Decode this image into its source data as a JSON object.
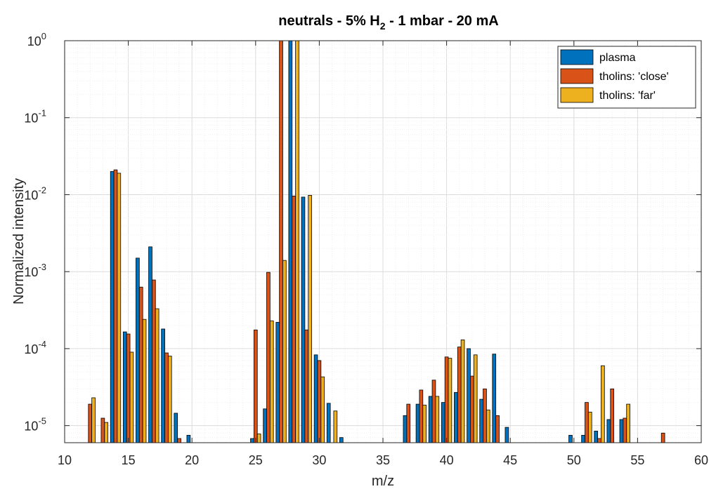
{
  "chart_data": {
    "type": "bar",
    "title_main": "neutrals  -  5% H",
    "title_sub": "2",
    "title_rest": "  -  1 mbar  -  20 mA",
    "xlabel": "m/z",
    "ylabel": "Normalized intensity",
    "xlim": [
      10,
      60
    ],
    "ylim": [
      6e-06,
      1
    ],
    "yscale": "log",
    "grid": true,
    "minor_grid": true,
    "legend_position": "top-right",
    "x_ticks": [
      10,
      15,
      20,
      25,
      30,
      35,
      40,
      45,
      50,
      55,
      60
    ],
    "y_ticks": [
      {
        "base": "10",
        "exp": "0"
      },
      {
        "base": "10",
        "exp": "-1"
      },
      {
        "base": "10",
        "exp": "-2"
      },
      {
        "base": "10",
        "exp": "-3"
      },
      {
        "base": "10",
        "exp": "-4"
      },
      {
        "base": "10",
        "exp": "-5"
      }
    ],
    "series": [
      {
        "name": "plasma",
        "color": "#0072BD",
        "points": [
          [
            14,
            0.02
          ],
          [
            15,
            0.000165
          ],
          [
            16,
            0.0015
          ],
          [
            17,
            0.0021
          ],
          [
            18,
            0.00018
          ],
          [
            19,
            1.45e-05
          ],
          [
            20,
            7.5e-06
          ],
          [
            25,
            6.8e-06
          ],
          [
            26,
            1.65e-05
          ],
          [
            27,
            0.00022
          ],
          [
            28,
            1.0
          ],
          [
            29,
            0.0093
          ],
          [
            30,
            8.3e-05
          ],
          [
            31,
            1.95e-05
          ],
          [
            32,
            7e-06
          ],
          [
            37,
            1.35e-05
          ],
          [
            38,
            1.9e-05
          ],
          [
            39,
            2.4e-05
          ],
          [
            40,
            2e-05
          ],
          [
            41,
            2.7e-05
          ],
          [
            42,
            0.0001
          ],
          [
            43,
            2.2e-05
          ],
          [
            44,
            8.5e-05
          ],
          [
            45,
            9.5e-06
          ],
          [
            50,
            7.5e-06
          ],
          [
            51,
            7.5e-06
          ],
          [
            52,
            8.5e-06
          ],
          [
            53,
            1.2e-05
          ],
          [
            54,
            1.2e-05
          ]
        ]
      },
      {
        "name": "tholins: 'close'",
        "color": "#D95319",
        "points": [
          [
            12,
            1.9e-05
          ],
          [
            13,
            1.25e-05
          ],
          [
            14,
            0.021
          ],
          [
            15,
            0.000155
          ],
          [
            16,
            0.00063
          ],
          [
            17,
            0.00078
          ],
          [
            18,
            8.8e-05
          ],
          [
            19,
            6.8e-06
          ],
          [
            25,
            0.000175
          ],
          [
            26,
            0.00098
          ],
          [
            27,
            1.0
          ],
          [
            28,
            0.0096
          ],
          [
            29,
            0.000175
          ],
          [
            30,
            7e-05
          ],
          [
            37,
            1.9e-05
          ],
          [
            38,
            2.9e-05
          ],
          [
            39,
            3.9e-05
          ],
          [
            40,
            7.8e-05
          ],
          [
            41,
            0.000105
          ],
          [
            42,
            4.4e-05
          ],
          [
            43,
            3e-05
          ],
          [
            44,
            1.35e-05
          ],
          [
            51,
            2e-05
          ],
          [
            52,
            6.8e-06
          ],
          [
            53,
            3e-05
          ],
          [
            54,
            1.25e-05
          ],
          [
            57,
            8e-06
          ]
        ]
      },
      {
        "name": "tholins: 'far'",
        "color": "#EDB120",
        "points": [
          [
            12,
            2.3e-05
          ],
          [
            13,
            1.1e-05
          ],
          [
            14,
            0.019
          ],
          [
            15,
            9e-05
          ],
          [
            16,
            0.00024
          ],
          [
            17,
            0.00033
          ],
          [
            18,
            8e-05
          ],
          [
            25,
            7.8e-06
          ],
          [
            26,
            0.00023
          ],
          [
            27,
            0.0014
          ],
          [
            28,
            1.0
          ],
          [
            29,
            0.0098
          ],
          [
            30,
            4.3e-05
          ],
          [
            31,
            1.55e-05
          ],
          [
            38,
            1.85e-05
          ],
          [
            39,
            2.4e-05
          ],
          [
            40,
            7.5e-05
          ],
          [
            41,
            0.00013
          ],
          [
            42,
            8.3e-05
          ],
          [
            43,
            1.6e-05
          ],
          [
            51,
            1.5e-05
          ],
          [
            52,
            6e-05
          ],
          [
            54,
            1.9e-05
          ]
        ]
      }
    ]
  }
}
